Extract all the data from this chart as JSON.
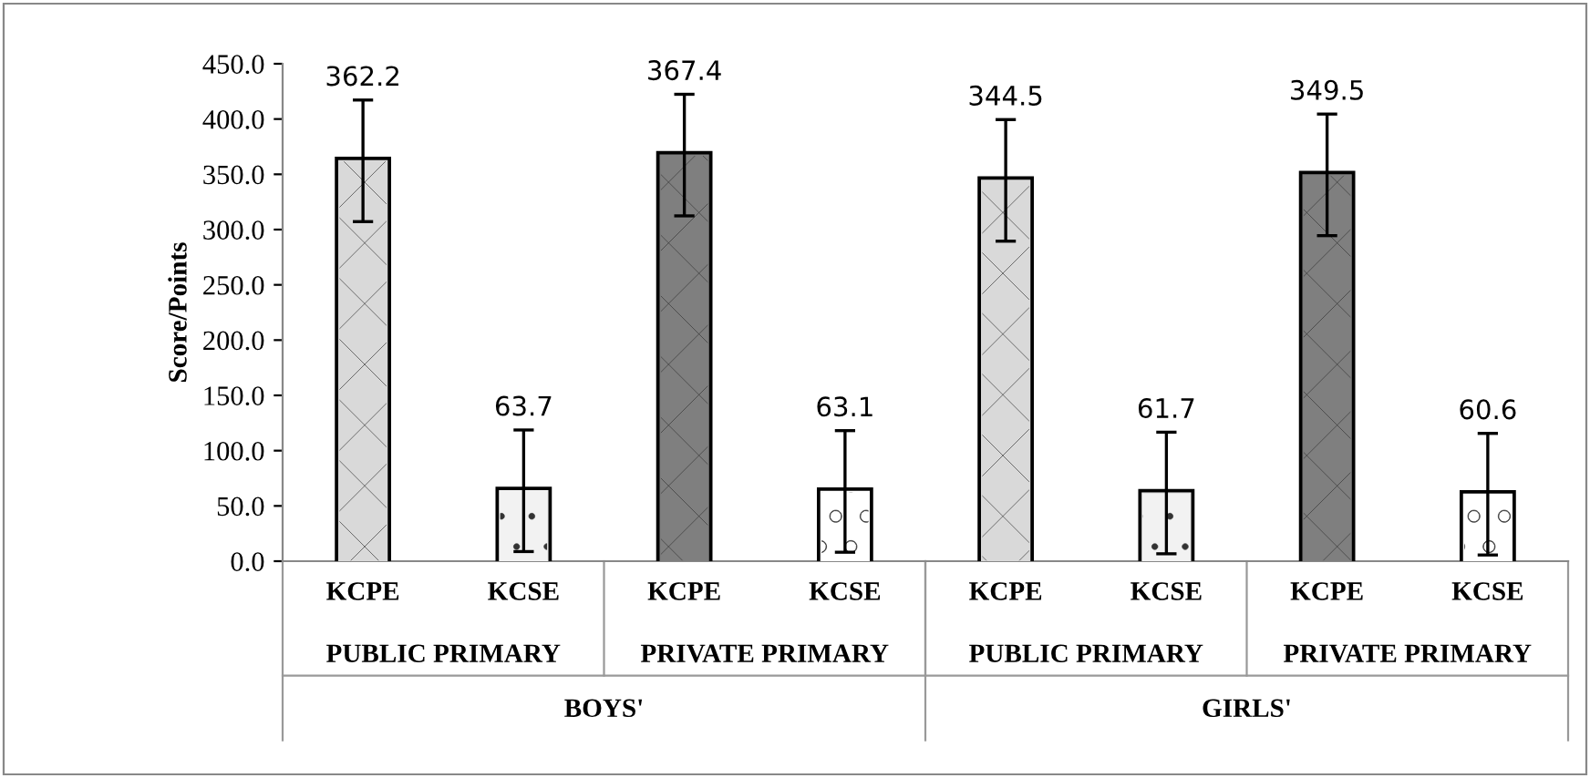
{
  "chart_data": {
    "type": "bar",
    "ylabel": "Score/Points",
    "categories": [
      "KCPE",
      "KCSE",
      "KCPE",
      "KCSE",
      "KCPE",
      "KCSE",
      "KCPE",
      "KCSE"
    ],
    "values": [
      362.2,
      63.7,
      367.4,
      63.1,
      344.5,
      61.7,
      349.5,
      60.6
    ],
    "errors": [
      55,
      55,
      55,
      55,
      55,
      55,
      55,
      55
    ],
    "colors": [
      "#d9d9d9",
      "#f2f2f2",
      "#7f7f7f",
      "#ffffff",
      "#d9d9d9",
      "#f2f2f2",
      "#7f7f7f",
      "#ffffff"
    ],
    "data_labels": true,
    "ylim": [
      0,
      450
    ],
    "yticks": [
      {
        "value": 0,
        "label": "0.0"
      },
      {
        "value": 50,
        "label": "50.0"
      },
      {
        "value": 100,
        "label": "100.0"
      },
      {
        "value": 150,
        "label": "150.0"
      },
      {
        "value": 200,
        "label": "200.0"
      },
      {
        "value": 250,
        "label": "250.0"
      },
      {
        "value": 300,
        "label": "300.0"
      },
      {
        "value": 350,
        "label": "350.0"
      },
      {
        "value": 400,
        "label": "400.0"
      },
      {
        "value": 450,
        "label": "450.0"
      }
    ],
    "annotations": [
      "PUBLIC PRIMARY",
      "PRIVATE PRIMARY",
      "PUBLIC PRIMARY",
      "PRIVATE PRIMARY",
      "BOYS'",
      "GIRLS'"
    ],
    "grid": false
  }
}
